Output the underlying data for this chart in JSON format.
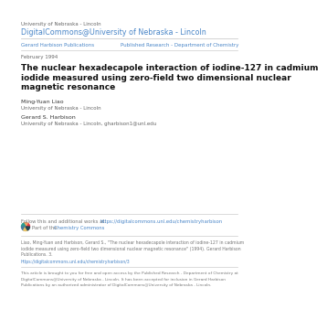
{
  "bg_color": "#ffffff",
  "header_small": "University of Nebraska - Lincoln",
  "header_large": "DigitalCommons@University of Nebraska - Lincoln",
  "header_large_color": "#4a86c8",
  "header_small_color": "#666666",
  "nav_left": "Gerard Harbison Publications",
  "nav_right": "Published Research - Department of Chemistry",
  "nav_color": "#4a86c8",
  "date": "February 1994",
  "date_color": "#666666",
  "title": "The nuclear hexadecapole interaction of iodine-127 in cadmium iodide measured using zero-field two dimensional nuclear magnetic resonance",
  "title_color": "#111111",
  "author1_name": "Ming-Yuan Liao",
  "author1_affil": "University of Nebraska - Lincoln",
  "author2_name": "Gerard S. Harbison",
  "author2_affil": "University of Nebraska - Lincoln, gharbison1@unl.edu",
  "author_color": "#333333",
  "affil_color": "#666666",
  "follow_text": "Follow this and additional works at: ",
  "follow_link": "https://digitalcommons.unl.edu/chemistryharbison",
  "part_text": "Part of the ",
  "commons_link": "Chemistry Commons",
  "link_color": "#4a86c8",
  "cite_text": "Liao, Ming-Yuan and Harbison, Gerard S., \"The nuclear hexadecapole interaction of iodine-127 in cadmium iodide measured using zero-field two dimensional nuclear magnetic resonance\" (1994). Gerard Harbison Publications. 3.",
  "cite_url": "https://digitalcommons.unl.edu/chemistryharbison/3",
  "footer_text": "This article is brought to you for free and open access by the Published Research - Department of Chemistry at DigitalCommons@University of Nebraska - Lincoln. It has been accepted for inclusion in Gerard Harbison Publications by an authorized administrator of DigitalCommons@University of Nebraska - Lincoln.",
  "footer_color": "#777777",
  "line_color": "#cccccc",
  "wheel_colors": [
    "#e63946",
    "#f4a261",
    "#2a9d8f",
    "#457b9d",
    "#e9c46a",
    "#264653"
  ]
}
